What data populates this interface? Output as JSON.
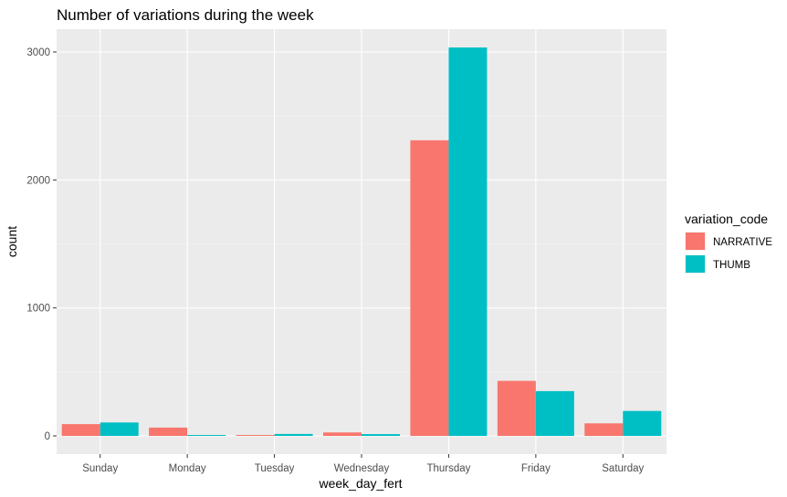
{
  "chart_data": {
    "type": "bar",
    "title": "Number of variations during the week",
    "xlabel": "week_day_fert",
    "ylabel": "count",
    "categories": [
      "Sunday",
      "Monday",
      "Tuesday",
      "Wednesday",
      "Thursday",
      "Friday",
      "Saturday"
    ],
    "series": [
      {
        "name": "NARRATIVE",
        "color": "#F8766D",
        "values": [
          92,
          65,
          7,
          27,
          2310,
          430,
          98
        ]
      },
      {
        "name": "THUMB",
        "color": "#00BFC4",
        "values": [
          105,
          7,
          15,
          14,
          3035,
          350,
          195
        ]
      }
    ],
    "ylim": [
      0,
      3000
    ],
    "yticks": [
      0,
      1000,
      2000,
      3000
    ],
    "ytick_labels": [
      "0",
      "1000",
      "2000",
      "3000"
    ],
    "legend": {
      "title": "variation_code",
      "position": "right"
    },
    "grid": true,
    "panel_background": "#EBEBEB",
    "grid_color": "#FFFFFF"
  }
}
